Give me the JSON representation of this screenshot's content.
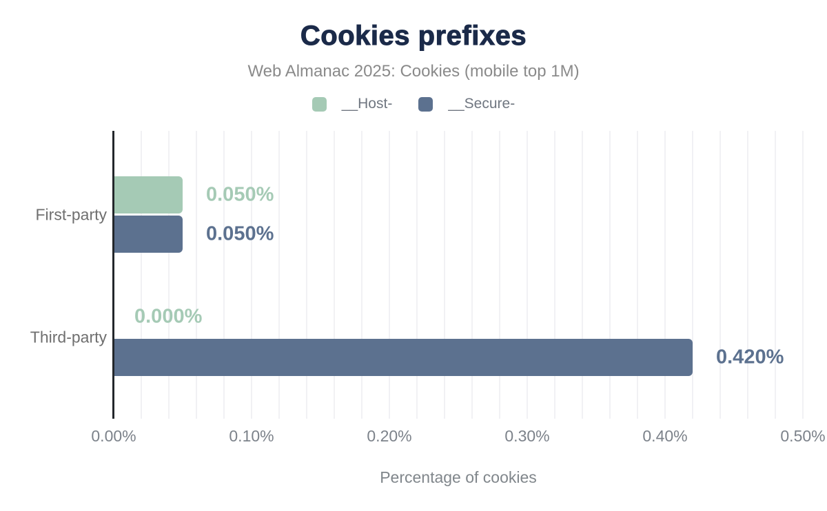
{
  "header": {
    "title": "Cookies prefixes",
    "subtitle": "Web Almanac 2025: Cookies (mobile top 1M)",
    "title_color": "#1b2a49"
  },
  "legend": {
    "items": [
      {
        "label": "__Host-",
        "color": "#a5cab5"
      },
      {
        "label": "__Secure-",
        "color": "#5c718f"
      }
    ]
  },
  "chart_data": {
    "type": "bar",
    "orientation": "horizontal",
    "title": "Cookies prefixes",
    "subtitle": "Web Almanac 2025: Cookies (mobile top 1M)",
    "categories": [
      "First-party",
      "Third-party"
    ],
    "series": [
      {
        "name": "__Host-",
        "color": "#a5cab5",
        "values": [
          0.05,
          0.0
        ],
        "labels": [
          "0.050%",
          "0.000%"
        ]
      },
      {
        "name": "__Secure-",
        "color": "#5c718f",
        "values": [
          0.05,
          0.42
        ],
        "labels": [
          "0.050%",
          "0.420%"
        ]
      }
    ],
    "xlabel": "Percentage of cookies",
    "ylabel": "",
    "xlim": [
      0,
      0.5
    ],
    "x_ticks": [
      "0.00%",
      "0.10%",
      "0.20%",
      "0.30%",
      "0.40%",
      "0.50%"
    ],
    "minor_grid_step": 0.02,
    "grid": true,
    "legend_position": "top"
  }
}
